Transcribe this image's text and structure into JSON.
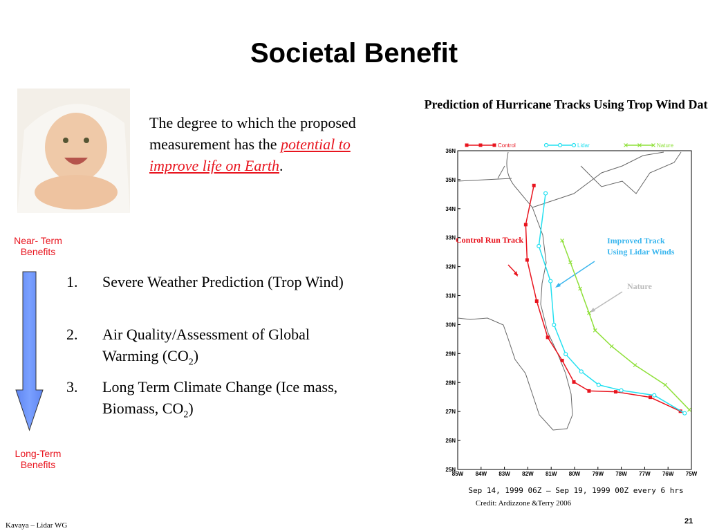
{
  "title": "Societal Benefit",
  "intro": {
    "before": "The degree to which the proposed measurement has the ",
    "link": "potential to improve life on Earth",
    "after": "."
  },
  "timeline": {
    "top": "Near- Term Benefits",
    "bottom": "Long-Term Benefits"
  },
  "items": [
    {
      "number": "1.",
      "parts": [
        "Severe Weather Prediction (Trop Wind)"
      ]
    },
    {
      "number": "2.",
      "parts": [
        "Air Quality/Assessment of Global Warming (CO",
        "2",
        ")"
      ]
    },
    {
      "number": "3.",
      "parts": [
        "Long Term Climate Change (Ice mass, Biomass, CO",
        "2",
        ")"
      ]
    }
  ],
  "chart_data": {
    "type": "line",
    "title": "Prediction of Hurricane Tracks Using Trop Wind Data",
    "subtitle": "Sep 14, 1999 06Z  —  Sep 19, 1999 00Z every 6 hrs",
    "credit": "Credit: Ardizzone &Terry 2006",
    "annotations": [
      "Control  Run Track",
      "Improved Track Using Lidar Winds",
      "Nature"
    ],
    "xlim": [
      -85,
      -75
    ],
    "ylim": [
      25,
      36
    ],
    "xticks": [
      {
        "value": -85,
        "label": "85W"
      },
      {
        "value": -84,
        "label": "84W"
      },
      {
        "value": -83,
        "label": "83W"
      },
      {
        "value": -82,
        "label": "82W"
      },
      {
        "value": -81,
        "label": "81W"
      },
      {
        "value": -80,
        "label": "80W"
      },
      {
        "value": -79,
        "label": "79W"
      },
      {
        "value": -78,
        "label": "78W"
      },
      {
        "value": -77,
        "label": "77W"
      },
      {
        "value": -76,
        "label": "76W"
      },
      {
        "value": -75,
        "label": "75W"
      }
    ],
    "yticks": [
      {
        "value": 25,
        "label": "25N"
      },
      {
        "value": 26,
        "label": "26N"
      },
      {
        "value": 27,
        "label": "27N"
      },
      {
        "value": 28,
        "label": "28N"
      },
      {
        "value": 29,
        "label": "29N"
      },
      {
        "value": 30,
        "label": "30N"
      },
      {
        "value": 31,
        "label": "31N"
      },
      {
        "value": 32,
        "label": "32N"
      },
      {
        "value": 33,
        "label": "33N"
      },
      {
        "value": 34,
        "label": "34N"
      },
      {
        "value": 35,
        "label": "35N"
      },
      {
        "value": 36,
        "label": "36N"
      }
    ],
    "series": [
      {
        "name": "Control",
        "color": "#e8141e",
        "marker": "square",
        "x": [
          -81.74,
          -82.09,
          -82.03,
          -81.62,
          -81.15,
          -80.53,
          -80.03,
          -79.38,
          -78.24,
          -76.76,
          -75.47
        ],
        "values": [
          34.8,
          33.45,
          32.23,
          30.81,
          29.56,
          28.76,
          28.02,
          27.71,
          27.68,
          27.49,
          27.01
        ]
      },
      {
        "name": "Lidar",
        "color": "#22e0f0",
        "marker": "circle",
        "x": [
          -81.24,
          -81.53,
          -81.03,
          -80.88,
          -80.38,
          -79.71,
          -78.97,
          -78.0,
          -76.59,
          -75.29
        ],
        "values": [
          34.53,
          32.71,
          31.5,
          29.99,
          28.98,
          28.38,
          27.92,
          27.73,
          27.56,
          26.94
        ]
      },
      {
        "name": "Nature",
        "color": "#8fe03a",
        "marker": "cross",
        "x": [
          -80.53,
          -80.18,
          -79.76,
          -79.38,
          -79.12,
          -78.41,
          -77.41,
          -76.12,
          -75.09
        ],
        "values": [
          32.9,
          32.15,
          31.24,
          30.4,
          29.8,
          29.25,
          28.6,
          27.92,
          27.06
        ]
      }
    ]
  },
  "footer": {
    "left": "Kavaya – Lidar WG",
    "page": "21"
  }
}
